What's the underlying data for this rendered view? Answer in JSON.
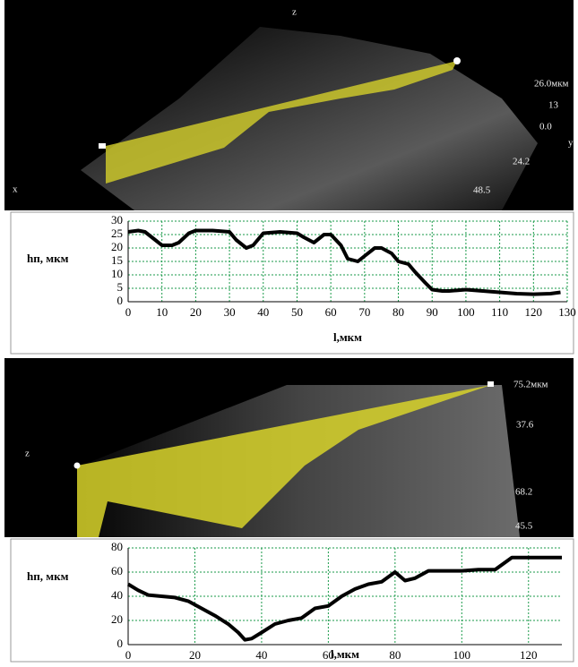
{
  "surface_images": [
    {
      "labels": [
        "z",
        "26.0мкм",
        "13",
        "0.0",
        "y",
        "24.2",
        "48.5",
        "x"
      ]
    },
    {
      "labels": [
        "75.2мкм",
        "37.6",
        "z",
        "68.2",
        "45.5"
      ]
    }
  ],
  "chart_data": [
    {
      "type": "line",
      "ylabel": "hп, мкм",
      "xlabel": "l,мкм",
      "x": [
        0,
        3,
        5,
        8,
        10,
        13,
        15,
        18,
        20,
        25,
        30,
        32,
        35,
        37,
        40,
        45,
        50,
        52,
        55,
        58,
        60,
        63,
        65,
        68,
        70,
        73,
        75,
        78,
        80,
        83,
        85,
        88,
        90,
        93,
        95,
        100,
        105,
        110,
        115,
        120,
        125,
        128
      ],
      "series": [
        {
          "color": "#000000",
          "values": [
            26,
            26.5,
            26,
            23,
            21,
            21,
            22,
            25.5,
            26.5,
            26.5,
            26,
            23,
            20,
            21,
            25.5,
            26,
            25.5,
            24,
            22,
            25,
            25,
            21,
            16,
            15,
            17,
            20,
            20,
            18,
            15,
            14,
            11,
            7,
            4.5,
            4,
            4,
            4.5,
            4,
            3.5,
            3,
            2.8,
            3,
            3.5
          ]
        }
      ],
      "xlim": [
        0,
        130
      ],
      "xticks": [
        0,
        10,
        20,
        30,
        40,
        50,
        60,
        70,
        80,
        90,
        100,
        110,
        120,
        130
      ],
      "ylim": [
        0,
        30
      ],
      "yticks": [
        0,
        5,
        10,
        15,
        20,
        25,
        30
      ],
      "grid": true,
      "grid_color": "#1a9a4a"
    },
    {
      "type": "line",
      "ylabel": "hп, мкм",
      "xlabel": "l,мкм",
      "x": [
        0,
        3,
        6,
        10,
        14,
        18,
        22,
        26,
        30,
        33,
        35,
        37,
        40,
        44,
        48,
        52,
        56,
        60,
        64,
        68,
        72,
        76,
        80,
        83,
        86,
        90,
        95,
        100,
        105,
        110,
        115,
        120,
        125,
        130
      ],
      "series": [
        {
          "color": "#000000",
          "values": [
            50,
            45,
            41,
            40,
            39,
            36,
            30,
            24,
            17,
            10,
            4,
            5,
            10,
            17,
            20,
            22,
            30,
            32,
            40,
            46,
            50,
            52,
            60,
            53,
            55,
            61,
            61,
            61,
            62,
            62,
            72,
            72,
            72,
            72
          ]
        }
      ],
      "xlim": [
        0,
        130
      ],
      "xticks": [
        0,
        20,
        40,
        60,
        80,
        100,
        120
      ],
      "ylim": [
        0,
        80
      ],
      "yticks": [
        0,
        20,
        40,
        60,
        80
      ],
      "grid": true,
      "grid_color": "#1a9a4a"
    }
  ]
}
